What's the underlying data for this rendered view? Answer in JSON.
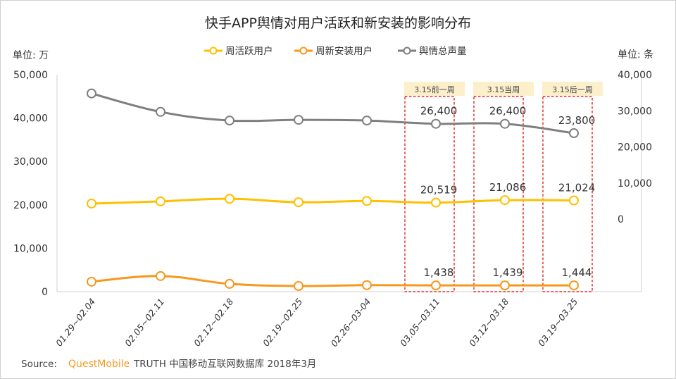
{
  "chart_data": {
    "type": "line",
    "title": "快手APP舆情对用户活跃和新安装的影响分布",
    "left_unit": "单位: 万",
    "right_unit": "单位: 条",
    "left_ylim": [
      0,
      50000
    ],
    "right_ylim": [
      0,
      40000
    ],
    "left_ticks": [
      "0",
      "10,000",
      "20,000",
      "30,000",
      "40,000",
      "50,000"
    ],
    "right_ticks": [
      "0",
      "10,000",
      "20,000",
      "30,000",
      "40,000"
    ],
    "left_tick_values": [
      0,
      10000,
      20000,
      30000,
      40000,
      50000
    ],
    "right_tick_values": [
      0,
      10000,
      20000,
      30000,
      40000
    ],
    "legend_position": "top-center",
    "categories": [
      "01.29~02.04",
      "02.05~02.11",
      "02.12~02.18",
      "02.19~02.25",
      "02.26~03-04",
      "03.05~03.11",
      "03.12~03.18",
      "03.19~03.25"
    ],
    "series": [
      {
        "name": "周活跃用户",
        "axis": "left",
        "color": "#FFC000",
        "values": [
          20300,
          20800,
          21400,
          20600,
          20900,
          20519,
          21086,
          21024
        ],
        "labels": [
          "",
          "",
          "",
          "",
          "",
          "20,519",
          "21,086",
          "21,024"
        ]
      },
      {
        "name": "周新安装用户",
        "axis": "left",
        "color": "#F7981D",
        "values": [
          2300,
          3600,
          1800,
          1300,
          1500,
          1438,
          1439,
          1444
        ],
        "labels": [
          "",
          "",
          "",
          "",
          "",
          "1,438",
          "1,439",
          "1,444"
        ]
      },
      {
        "name": "舆情总声量",
        "axis": "right",
        "color": "#7F7F7F",
        "values": [
          34800,
          29700,
          27300,
          27500,
          27300,
          26400,
          26400,
          23800
        ],
        "labels": [
          "",
          "",
          "",
          "",
          "",
          "26,400",
          "26,400",
          "23,800"
        ]
      }
    ],
    "annotations": [
      {
        "text": "3.15前一周",
        "category_index": 5
      },
      {
        "text": "3.15当周",
        "category_index": 6
      },
      {
        "text": "3.15后一周",
        "category_index": 7
      }
    ]
  },
  "source": {
    "prefix": "Source:",
    "brand": "QuestMobile",
    "suffix": "TRUTH 中国移动互联网数据库 2018年3月"
  },
  "colors": {
    "highlight_box": "#E00000",
    "annotation_bg": "#FCEFCB",
    "brand": "#F7981D",
    "axis": "#D0D0D0"
  }
}
